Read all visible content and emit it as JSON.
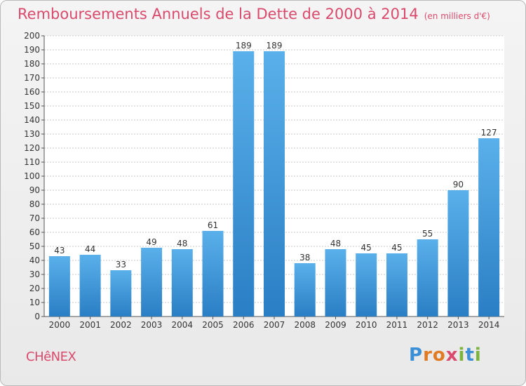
{
  "header": {
    "title": "Remboursements Annuels de la Dette de 2000 à 2014",
    "unit": "(en milliers d'€)"
  },
  "footer": {
    "city": "CHêNEX",
    "logo": "Proxiti"
  },
  "colors": {
    "title": "#d94a6c",
    "bar_top": "#5ab0ea",
    "bar_bottom": "#2a7ec4"
  },
  "chart_data": {
    "type": "bar",
    "title": "Remboursements Annuels de la Dette de 2000 à 2014",
    "categories": [
      "2000",
      "2001",
      "2002",
      "2003",
      "2004",
      "2005",
      "2006",
      "2007",
      "2008",
      "2009",
      "2010",
      "2011",
      "2012",
      "2013",
      "2014"
    ],
    "values": [
      43,
      44,
      33,
      49,
      48,
      61,
      189,
      189,
      38,
      48,
      45,
      45,
      55,
      90,
      127
    ],
    "ylim": [
      0,
      200
    ],
    "ytick_step": 10,
    "grid": true
  }
}
